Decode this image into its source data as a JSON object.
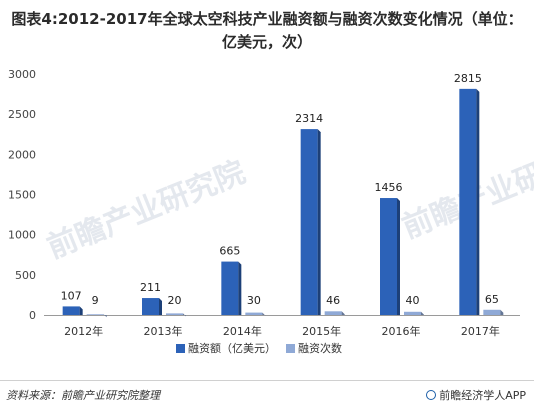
{
  "title": "图表4:2012-2017年全球太空科技产业融资额与融资次数变化情况（单位：亿美元，次）",
  "source_text": "资料来源：前瞻产业研究院整理",
  "brand_text": "前瞻经济学人APP",
  "watermark_text": "前瞻产业研究院",
  "chart_data": {
    "type": "bar",
    "title": "图表4:2012-2017年全球太空科技产业融资额与融资次数变化情况（单位：亿美元，次）",
    "categories": [
      "2012年",
      "2013年",
      "2014年",
      "2015年",
      "2016年",
      "2017年"
    ],
    "series": [
      {
        "name": "融资额（亿美元）",
        "values": [
          107,
          211,
          665,
          2314,
          1456,
          2815
        ],
        "color": "#2c62b8"
      },
      {
        "name": "融资次数",
        "values": [
          9,
          20,
          30,
          46,
          40,
          65
        ],
        "color": "#8fa9d6"
      }
    ],
    "ylim": [
      0,
      3000
    ],
    "yticks": [
      0,
      500,
      1000,
      1500,
      2000,
      2500,
      3000
    ],
    "grid": false,
    "legend_position": "bottom"
  }
}
